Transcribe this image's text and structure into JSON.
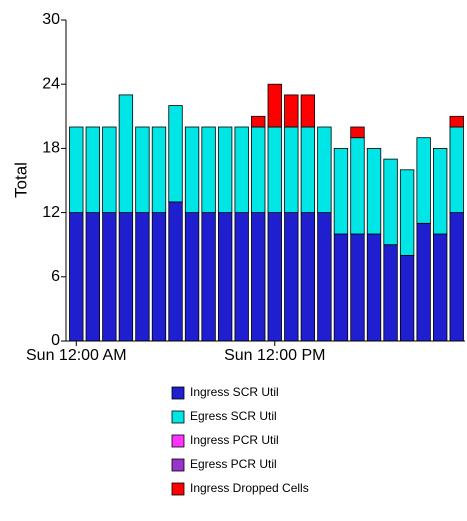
{
  "chart_data": {
    "type": "stacked_bar",
    "ylabel": "Total",
    "categories": [
      "Sun 12:00 AM",
      null,
      null,
      null,
      null,
      null,
      null,
      null,
      null,
      null,
      null,
      null,
      "Sun 12:00 PM",
      null,
      null,
      null,
      null,
      null,
      null,
      null,
      null,
      null,
      null,
      null
    ],
    "series": [
      {
        "name": "Ingress SCR Util",
        "color": "#1f1fcf",
        "values": [
          12,
          12,
          12,
          12,
          12,
          12,
          13,
          12,
          12,
          12,
          12,
          12,
          12,
          12,
          12,
          12,
          10,
          10,
          10,
          9,
          8,
          11,
          10,
          12
        ]
      },
      {
        "name": "Egress SCR Util",
        "color": "#00e6e6",
        "values": [
          8,
          8,
          8,
          11,
          8,
          8,
          9,
          8,
          8,
          8,
          8,
          8,
          8,
          8,
          8,
          8,
          8,
          9,
          8,
          8,
          8,
          8,
          8,
          8
        ]
      },
      {
        "name": "Ingress PCR Util",
        "color": "#ff33ff",
        "values": [
          0,
          0,
          0,
          0,
          0,
          0,
          0,
          0,
          0,
          0,
          0,
          0,
          0,
          0,
          0,
          0,
          0,
          0,
          0,
          0,
          0,
          0,
          0,
          0
        ]
      },
      {
        "name": "Egress PCR Util",
        "color": "#9933cc",
        "values": [
          0,
          0,
          0,
          0,
          0,
          0,
          0,
          0,
          0,
          0,
          0,
          0,
          0,
          0,
          0,
          0,
          0,
          0,
          0,
          0,
          0,
          0,
          0,
          0
        ]
      },
      {
        "name": "Ingress Dropped Cells",
        "color": "#ff0000",
        "values": [
          0,
          0,
          0,
          0,
          0,
          0,
          0,
          0,
          0,
          0,
          0,
          1,
          4,
          3,
          3,
          0,
          0,
          1,
          0,
          0,
          0,
          0,
          0,
          1
        ]
      }
    ],
    "ylim": [
      0,
      30
    ],
    "yticks": [
      0,
      6,
      12,
      18,
      24,
      30
    ]
  }
}
